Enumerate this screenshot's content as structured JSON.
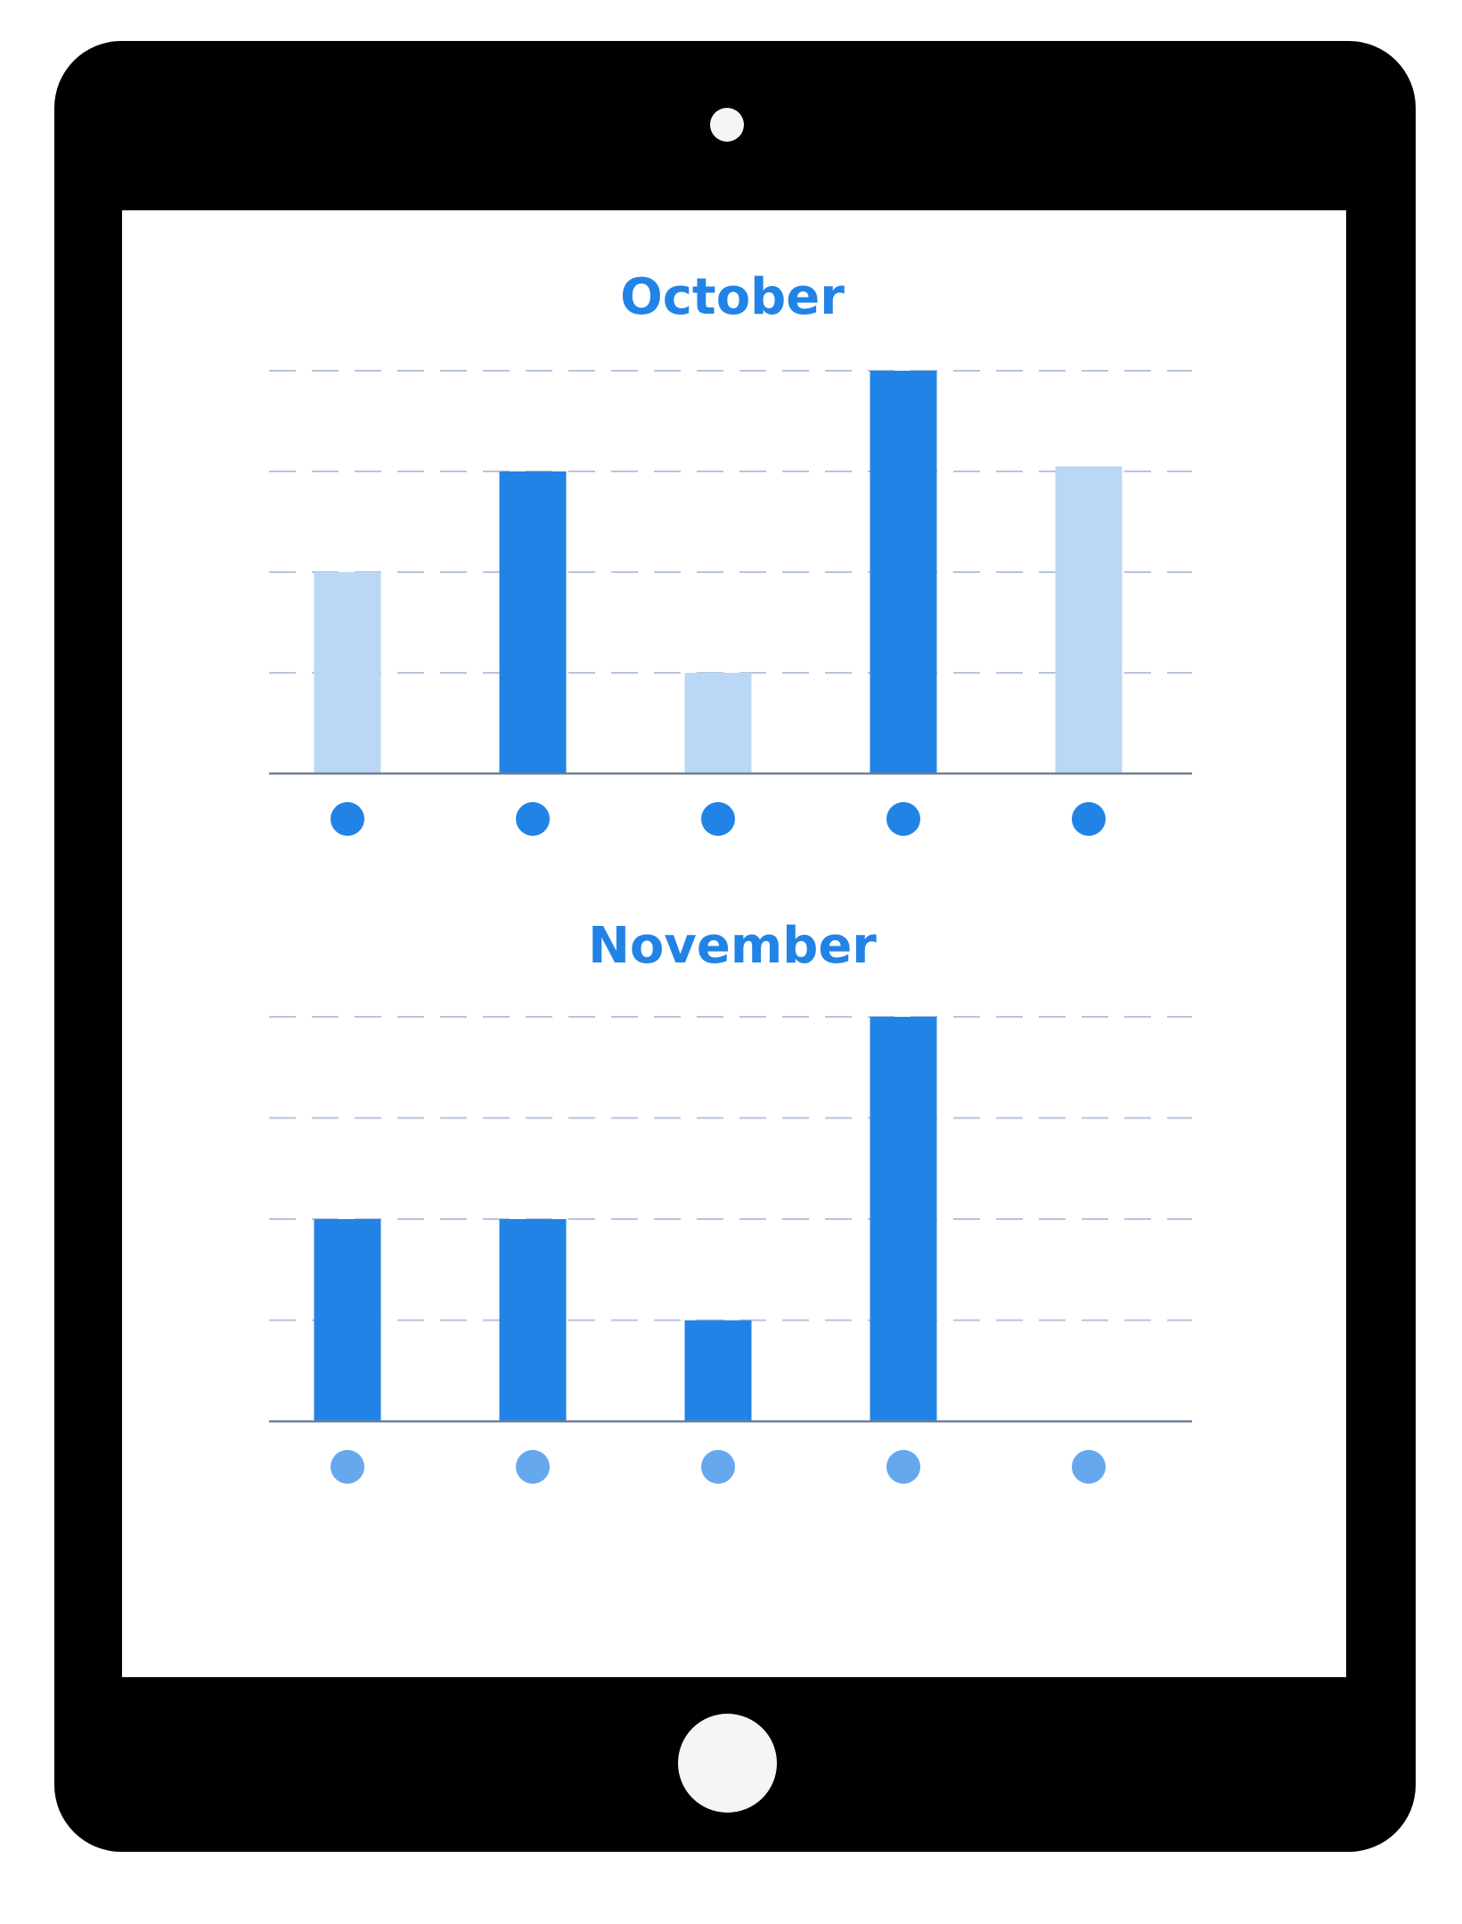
{
  "colors": {
    "device": "#000000",
    "screen": "#ffffff",
    "accent": "#2283e6",
    "accent_light": "#bad8f5",
    "dot_light": "#66a8ee",
    "gridline": "#b7c4de",
    "axis": "#6f7e98"
  },
  "device": {
    "icons": [
      "camera-icon",
      "home-button-icon"
    ]
  },
  "chart_data": [
    {
      "type": "bar",
      "title": "October",
      "values": [
        2,
        3,
        1,
        4,
        3.05
      ],
      "highlighted": [
        false,
        true,
        false,
        true,
        false
      ],
      "ylim": [
        0,
        4
      ],
      "grid": true,
      "category_markers": "dot",
      "marker_color": "#2283e6"
    },
    {
      "type": "bar",
      "title": "November",
      "values": [
        2,
        2,
        1,
        4,
        0
      ],
      "highlighted": [
        true,
        true,
        true,
        true,
        true
      ],
      "ylim": [
        0,
        4
      ],
      "grid": true,
      "category_markers": "dot",
      "marker_color": "#66a8ee"
    }
  ]
}
